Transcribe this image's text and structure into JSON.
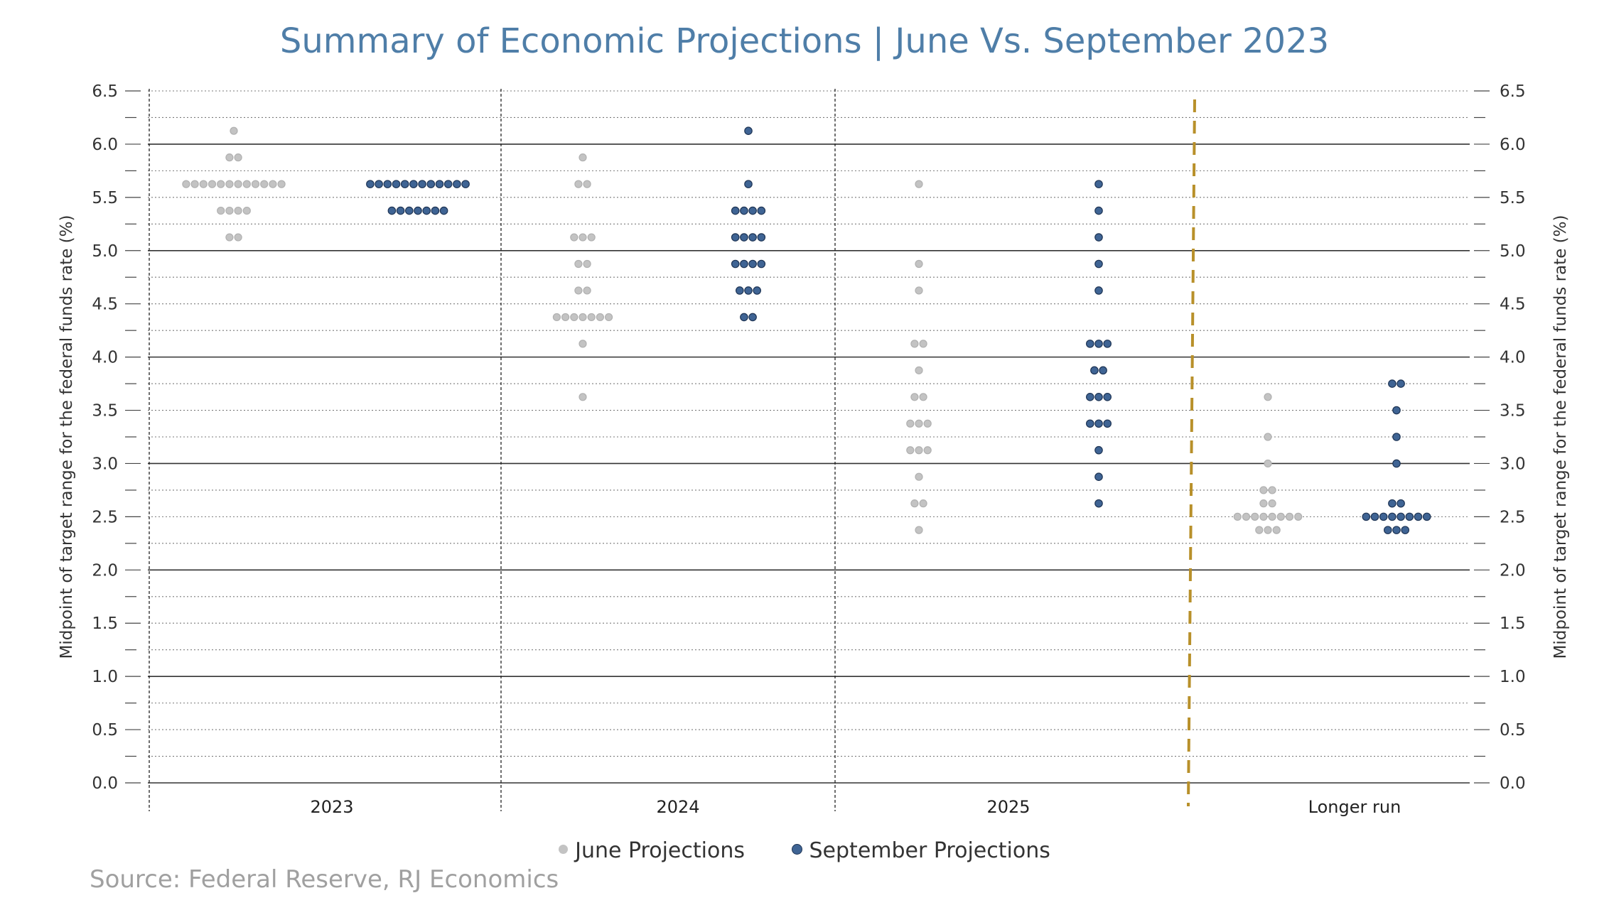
{
  "chart_data": {
    "type": "scatter",
    "title": "Summary of Economic Projections | June Vs. September 2023",
    "source": "Source: Federal Reserve, RJ Economics",
    "ylabel_left": "Midpoint of target range for the federal funds rate (%)",
    "ylabel_right": "Midpoint of target range for the federal funds rate (%)",
    "ylim": [
      0,
      6.5
    ],
    "yticks": [
      "0.0",
      "0.5",
      "1.0",
      "1.5",
      "2.0",
      "2.5",
      "3.0",
      "3.5",
      "4.0",
      "4.5",
      "5.0",
      "5.5",
      "6.0",
      "6.5"
    ],
    "categories": [
      "2023",
      "2024",
      "2025",
      "Longer run"
    ],
    "legend_position": "bottom",
    "colors": {
      "june": "#c3c3c3",
      "september": "#3f6494",
      "divider": "#b8902a",
      "title": "#4f7ea8"
    },
    "series": [
      {
        "name": "June Projections",
        "dots": {
          "2023": [
            [
              6.125,
              1
            ],
            [
              5.875,
              2
            ],
            [
              5.625,
              12
            ],
            [
              5.375,
              4
            ],
            [
              5.125,
              2
            ]
          ],
          "2024": [
            [
              5.875,
              1
            ],
            [
              5.625,
              2
            ],
            [
              5.125,
              3
            ],
            [
              4.875,
              2
            ],
            [
              4.625,
              2
            ],
            [
              4.375,
              7
            ],
            [
              4.125,
              1
            ],
            [
              3.625,
              1
            ]
          ],
          "2025": [
            [
              5.625,
              1
            ],
            [
              4.875,
              1
            ],
            [
              4.625,
              1
            ],
            [
              4.125,
              2
            ],
            [
              3.875,
              1
            ],
            [
              3.625,
              2
            ],
            [
              3.375,
              3
            ],
            [
              3.125,
              3
            ],
            [
              2.875,
              1
            ],
            [
              2.625,
              2
            ],
            [
              2.375,
              1
            ]
          ],
          "Longer run": [
            [
              3.625,
              1
            ],
            [
              3.25,
              1
            ],
            [
              3.0,
              1
            ],
            [
              2.75,
              2
            ],
            [
              2.625,
              2
            ],
            [
              2.5,
              8
            ],
            [
              2.375,
              3
            ]
          ]
        }
      },
      {
        "name": "September Projections",
        "dots": {
          "2023": [
            [
              5.625,
              12
            ],
            [
              5.375,
              7
            ]
          ],
          "2024": [
            [
              6.125,
              1
            ],
            [
              5.625,
              1
            ],
            [
              5.375,
              4
            ],
            [
              5.125,
              4
            ],
            [
              4.875,
              4
            ],
            [
              4.625,
              3
            ],
            [
              4.375,
              2
            ]
          ],
          "2025": [
            [
              5.625,
              1
            ],
            [
              5.375,
              1
            ],
            [
              5.125,
              1
            ],
            [
              4.875,
              1
            ],
            [
              4.625,
              1
            ],
            [
              4.125,
              3
            ],
            [
              3.875,
              2
            ],
            [
              3.625,
              3
            ],
            [
              3.375,
              3
            ],
            [
              3.125,
              1
            ],
            [
              2.875,
              1
            ],
            [
              2.625,
              1
            ]
          ],
          "Longer run": [
            [
              3.75,
              2
            ],
            [
              3.5,
              1
            ],
            [
              3.25,
              1
            ],
            [
              3.0,
              1
            ],
            [
              2.625,
              2
            ],
            [
              2.5,
              8
            ],
            [
              2.375,
              3
            ]
          ]
        }
      }
    ]
  }
}
